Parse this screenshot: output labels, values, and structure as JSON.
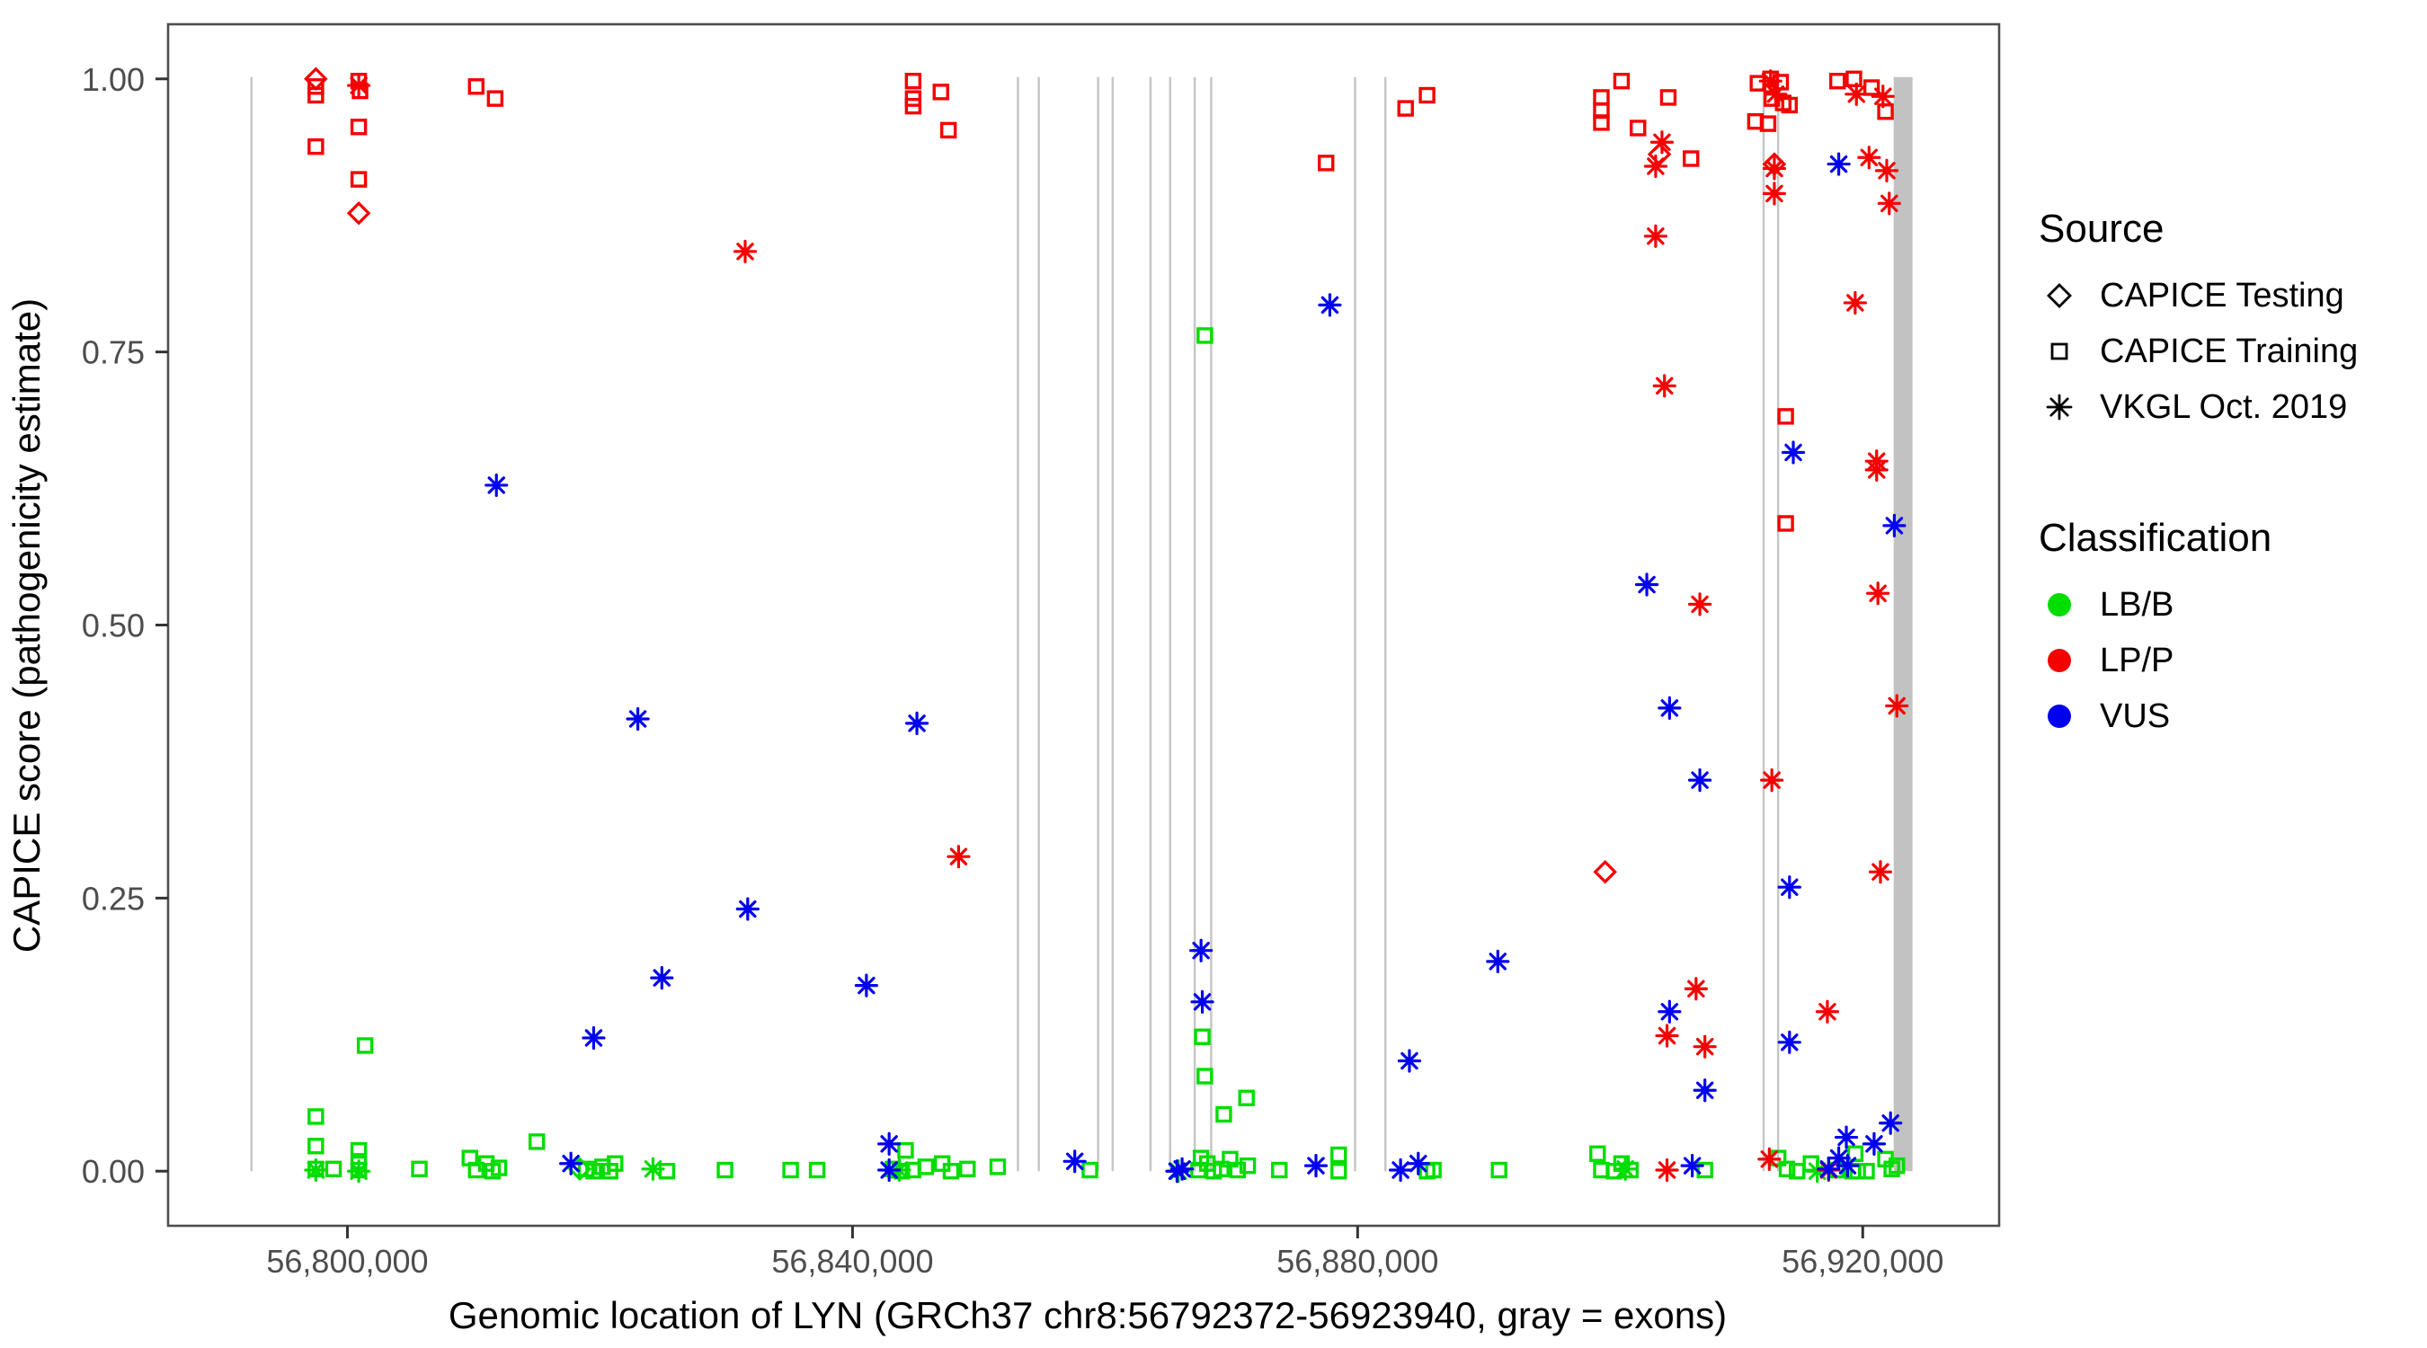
{
  "chart_data": {
    "type": "scatter",
    "xlabel": "Genomic location of LYN (GRCh37 chr8:56792372-56923940, gray = exons)",
    "ylabel": "CAPICE score (pathogenicity estimate)",
    "xlim": [
      56785800,
      56930800
    ],
    "ylim": [
      -0.05,
      1.05
    ],
    "grid": false,
    "x_ticks": [
      {
        "value": 56800000,
        "label": "56,800,000"
      },
      {
        "value": 56840000,
        "label": "56,840,000"
      },
      {
        "value": 56880000,
        "label": "56,880,000"
      },
      {
        "value": 56920000,
        "label": "56,920,000"
      }
    ],
    "y_ticks": [
      {
        "value": 0.0,
        "label": "0.00"
      },
      {
        "value": 0.25,
        "label": "0.25"
      },
      {
        "value": 0.5,
        "label": "0.50"
      },
      {
        "value": 0.75,
        "label": "0.75"
      },
      {
        "value": 1.0,
        "label": "1.00"
      }
    ],
    "exon_lines": [
      56792400,
      56853100,
      56854750,
      56859450,
      56860600,
      56863600,
      56865150,
      56867100,
      56868400,
      56879800,
      56882200,
      56912150,
      56913300
    ],
    "exon_block": {
      "start": 56922450,
      "end": 56923940
    },
    "exon_color": "#c6c6c6",
    "series": [
      {
        "source": "CAPICE Training",
        "classification": "LB/B",
        "shape": "square",
        "color": "#00dd00",
        "points": [
          [
            56797500,
            0.05
          ],
          [
            56797500,
            0.023
          ],
          [
            56797500,
            0.002
          ],
          [
            56798900,
            0.002
          ],
          [
            56801400,
            0.115
          ],
          [
            56800900,
            0.019
          ],
          [
            56800900,
            0.009
          ],
          [
            56800900,
            0.001
          ],
          [
            56805700,
            0.002
          ],
          [
            56809700,
            0.012
          ],
          [
            56810200,
            0.001
          ],
          [
            56811000,
            0.007
          ],
          [
            56811500,
            0.0
          ],
          [
            56812000,
            0.003
          ],
          [
            56815000,
            0.027
          ],
          [
            56818900,
            0.002
          ],
          [
            56819500,
            0.0
          ],
          [
            56820200,
            0.004
          ],
          [
            56820800,
            0.0
          ],
          [
            56821200,
            0.007
          ],
          [
            56825300,
            0.0
          ],
          [
            56829900,
            0.001
          ],
          [
            56835100,
            0.001
          ],
          [
            56837200,
            0.001
          ],
          [
            56843200,
            0.002
          ],
          [
            56843900,
            0.0
          ],
          [
            56844200,
            0.019
          ],
          [
            56844800,
            0.001
          ],
          [
            56845800,
            0.004
          ],
          [
            56847100,
            0.007
          ],
          [
            56847800,
            0.0
          ],
          [
            56849100,
            0.002
          ],
          [
            56851500,
            0.004
          ],
          [
            56858800,
            0.001
          ],
          [
            56867900,
            0.765
          ],
          [
            56867700,
            0.123
          ],
          [
            56867900,
            0.087
          ],
          [
            56871200,
            0.067
          ],
          [
            56869400,
            0.052
          ],
          [
            56867400,
            0.001
          ],
          [
            56868100,
            0.007
          ],
          [
            56868600,
            0.0
          ],
          [
            56869200,
            0.002
          ],
          [
            56869900,
            0.011
          ],
          [
            56870500,
            0.001
          ],
          [
            56871300,
            0.005
          ],
          [
            56867600,
            0.012
          ],
          [
            56873800,
            0.001
          ],
          [
            56878500,
            0.015
          ],
          [
            56878500,
            0.0
          ],
          [
            56885500,
            0.0
          ],
          [
            56886000,
            0.001
          ],
          [
            56891200,
            0.001
          ],
          [
            56899000,
            0.016
          ],
          [
            56899300,
            0.001
          ],
          [
            56900300,
            0.0
          ],
          [
            56900900,
            0.007
          ],
          [
            56901600,
            0.001
          ],
          [
            56907500,
            0.001
          ],
          [
            56913300,
            0.012
          ],
          [
            56914000,
            0.002
          ],
          [
            56914800,
            0.0
          ],
          [
            56915900,
            0.007
          ],
          [
            56917900,
            0.001
          ],
          [
            56919400,
            0.016
          ],
          [
            56919200,
            0.0
          ],
          [
            56919600,
            0.0
          ],
          [
            56920300,
            0.0
          ],
          [
            56921800,
            0.011
          ],
          [
            56922300,
            0.002
          ],
          [
            56922700,
            0.005
          ]
        ]
      },
      {
        "source": "VKGL Oct. 2019",
        "classification": "LB/B",
        "shape": "asterisk",
        "color": "#00dd00",
        "points": [
          [
            56797500,
            0.001
          ],
          [
            56800900,
            0.0
          ],
          [
            56824200,
            0.002
          ],
          [
            56843700,
            0.001
          ],
          [
            56865800,
            0.0
          ],
          [
            56901200,
            0.002
          ],
          [
            56916400,
            0.0
          ]
        ]
      },
      {
        "source": "CAPICE Testing",
        "classification": "LB/B",
        "shape": "diamond",
        "color": "#00dd00",
        "points": [
          [
            56818400,
            0.002
          ]
        ]
      },
      {
        "source": "CAPICE Training",
        "classification": "LP/P",
        "shape": "square",
        "color": "#f50000",
        "points": [
          [
            56797500,
            0.993
          ],
          [
            56797500,
            0.985
          ],
          [
            56797500,
            0.938
          ],
          [
            56800900,
            0.998
          ],
          [
            56801000,
            0.989
          ],
          [
            56800900,
            0.956
          ],
          [
            56800900,
            0.908
          ],
          [
            56810200,
            0.993
          ],
          [
            56811700,
            0.982
          ],
          [
            56844800,
            0.998
          ],
          [
            56844800,
            0.982
          ],
          [
            56844800,
            0.975
          ],
          [
            56847000,
            0.988
          ],
          [
            56847600,
            0.953
          ],
          [
            56877500,
            0.923
          ],
          [
            56883800,
            0.973
          ],
          [
            56885500,
            0.985
          ],
          [
            56899300,
            0.983
          ],
          [
            56899300,
            0.971
          ],
          [
            56899300,
            0.96
          ],
          [
            56900900,
            0.998
          ],
          [
            56902200,
            0.955
          ],
          [
            56904600,
            0.983
          ],
          [
            56906400,
            0.927
          ],
          [
            56911700,
            0.996
          ],
          [
            56912700,
            1.0
          ],
          [
            56913500,
            0.997
          ],
          [
            56912800,
            0.982
          ],
          [
            56913700,
            0.978
          ],
          [
            56914200,
            0.976
          ],
          [
            56911500,
            0.961
          ],
          [
            56912500,
            0.959
          ],
          [
            56913900,
            0.691
          ],
          [
            56913900,
            0.593
          ],
          [
            56918000,
            0.998
          ],
          [
            56919300,
            1.0
          ],
          [
            56920700,
            0.992
          ],
          [
            56921800,
            0.97
          ]
        ]
      },
      {
        "source": "VKGL Oct. 2019",
        "classification": "LP/P",
        "shape": "asterisk",
        "color": "#f50000",
        "points": [
          [
            56800900,
            0.994
          ],
          [
            56831500,
            0.842
          ],
          [
            56848400,
            0.288
          ],
          [
            56904100,
            0.942
          ],
          [
            56903600,
            0.92
          ],
          [
            56903600,
            0.856
          ],
          [
            56904300,
            0.719
          ],
          [
            56907100,
            0.519
          ],
          [
            56906800,
            0.167
          ],
          [
            56904500,
            0.124
          ],
          [
            56907500,
            0.114
          ],
          [
            56904500,
            0.001
          ],
          [
            56912700,
            0.998
          ],
          [
            56913100,
            0.986
          ],
          [
            56913000,
            0.918
          ],
          [
            56913000,
            0.895
          ],
          [
            56912800,
            0.358
          ],
          [
            56917200,
            0.146
          ],
          [
            56912600,
            0.011
          ],
          [
            56919500,
            0.986
          ],
          [
            56921600,
            0.984
          ],
          [
            56920500,
            0.928
          ],
          [
            56921900,
            0.916
          ],
          [
            56922100,
            0.886
          ],
          [
            56919400,
            0.795
          ],
          [
            56921100,
            0.65
          ],
          [
            56921100,
            0.642
          ],
          [
            56921200,
            0.529
          ],
          [
            56922700,
            0.426
          ],
          [
            56921400,
            0.274
          ],
          [
            56917300,
            0.001
          ]
        ]
      },
      {
        "source": "CAPICE Testing",
        "classification": "LP/P",
        "shape": "diamond",
        "color": "#f50000",
        "points": [
          [
            56797500,
            1.0
          ],
          [
            56800900,
            0.877
          ],
          [
            56903900,
            0.931
          ],
          [
            56899600,
            0.274
          ],
          [
            56913000,
            0.922
          ]
        ]
      },
      {
        "source": "VKGL Oct. 2019",
        "classification": "VUS",
        "shape": "asterisk",
        "color": "#0000f0",
        "points": [
          [
            56811800,
            0.628
          ],
          [
            56817700,
            0.007
          ],
          [
            56819500,
            0.122
          ],
          [
            56823000,
            0.414
          ],
          [
            56824900,
            0.177
          ],
          [
            56831700,
            0.24
          ],
          [
            56841100,
            0.17
          ],
          [
            56842900,
            0.025
          ],
          [
            56842900,
            0.001
          ],
          [
            56845100,
            0.41
          ],
          [
            56857600,
            0.009
          ],
          [
            56865700,
            0.0
          ],
          [
            56866100,
            0.002
          ],
          [
            56867600,
            0.202
          ],
          [
            56867700,
            0.155
          ],
          [
            56876700,
            0.005
          ],
          [
            56877800,
            0.793
          ],
          [
            56883400,
            0.001
          ],
          [
            56884100,
            0.101
          ],
          [
            56884800,
            0.007
          ],
          [
            56891100,
            0.192
          ],
          [
            56902900,
            0.537
          ],
          [
            56904700,
            0.424
          ],
          [
            56906500,
            0.005
          ],
          [
            56907100,
            0.358
          ],
          [
            56904700,
            0.146
          ],
          [
            56907500,
            0.074
          ],
          [
            56914500,
            0.658
          ],
          [
            56914200,
            0.26
          ],
          [
            56914200,
            0.118
          ],
          [
            56918100,
            0.922
          ],
          [
            56922500,
            0.591
          ],
          [
            56918700,
            0.031
          ],
          [
            56922200,
            0.044
          ],
          [
            56918100,
            0.012
          ],
          [
            56917300,
            0.002
          ],
          [
            56920900,
            0.025
          ],
          [
            56918800,
            0.005
          ]
        ]
      }
    ]
  },
  "axes_text": {
    "x_title": "Genomic location of LYN (GRCh37 chr8:56792372-56923940, gray = exons)",
    "y_title": "CAPICE score (pathogenicity estimate)"
  },
  "legend": {
    "source": {
      "title": "Source",
      "items": [
        {
          "label": "CAPICE Testing",
          "shape": "diamond"
        },
        {
          "label": "CAPICE Training",
          "shape": "square"
        },
        {
          "label": "VKGL Oct. 2019",
          "shape": "asterisk"
        }
      ]
    },
    "classification": {
      "title": "Classification",
      "items": [
        {
          "label": "LB/B",
          "color": "#00dd00"
        },
        {
          "label": "LP/P",
          "color": "#f50000"
        },
        {
          "label": "VUS",
          "color": "#0000f0"
        }
      ]
    }
  },
  "colors": {
    "panel_border": "#4d4d4d",
    "tick_text": "#4d4d4d",
    "exon": "#c6c6c6"
  }
}
